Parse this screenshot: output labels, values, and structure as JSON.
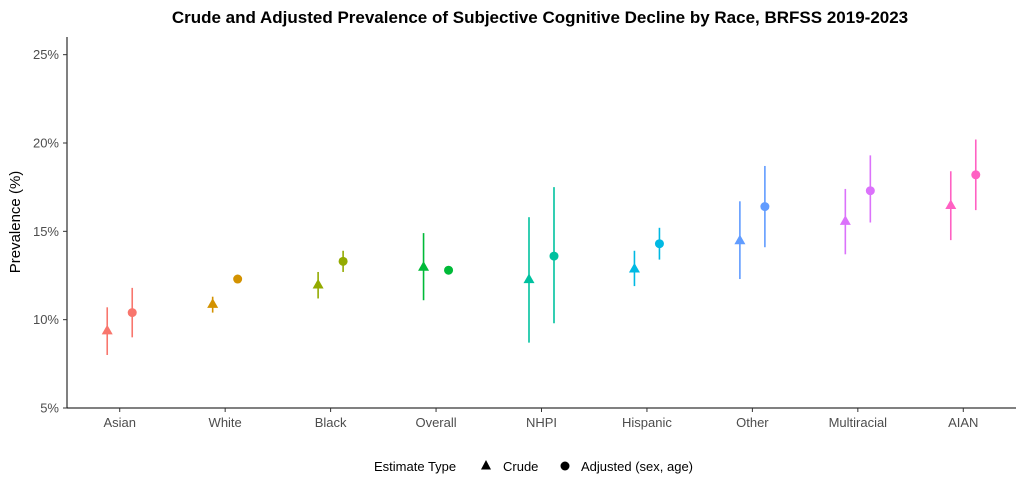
{
  "chart_data": {
    "type": "scatter",
    "title": "Crude and Adjusted Prevalence of Subjective Cognitive Decline by Race, BRFSS 2019-2023",
    "xlabel": "",
    "ylabel": "Prevalence (%)",
    "ylim": [
      5,
      26
    ],
    "yticks": [
      5,
      10,
      15,
      20,
      25
    ],
    "ytick_suffix": "%",
    "grid": false,
    "categories": [
      "Asian",
      "White",
      "Black",
      "Overall",
      "NHPI",
      "Hispanic",
      "Other",
      "Multiracial",
      "AIAN"
    ],
    "colors": [
      "#F8766D",
      "#D39200",
      "#93AA00",
      "#00BA38",
      "#00C19F",
      "#00B9E3",
      "#619CFF",
      "#DB72FB",
      "#FF61C3"
    ],
    "legend": {
      "title": "Estimate Type",
      "position": "bottom",
      "entries": [
        {
          "label": "Crude",
          "shape": "triangle"
        },
        {
          "label": "Adjusted (sex, age)",
          "shape": "circle"
        }
      ]
    },
    "series": [
      {
        "name": "Crude",
        "shape": "triangle",
        "values": [
          9.4,
          10.9,
          12.0,
          13.0,
          12.3,
          12.9,
          14.5,
          15.6,
          16.5
        ],
        "lower": [
          8.0,
          10.4,
          11.2,
          11.1,
          8.7,
          11.9,
          12.3,
          13.7,
          14.5
        ],
        "upper": [
          10.7,
          11.3,
          12.7,
          14.9,
          15.8,
          13.9,
          16.7,
          17.4,
          18.4
        ]
      },
      {
        "name": "Adjusted (sex, age)",
        "shape": "circle",
        "values": [
          10.4,
          12.3,
          13.3,
          12.8,
          13.6,
          14.3,
          16.4,
          17.3,
          18.2
        ],
        "lower": [
          9.0,
          12.3,
          12.7,
          12.8,
          9.8,
          13.4,
          14.1,
          15.5,
          16.2
        ],
        "upper": [
          11.8,
          12.3,
          13.9,
          12.8,
          17.5,
          15.2,
          18.7,
          19.3,
          20.2
        ]
      }
    ]
  }
}
